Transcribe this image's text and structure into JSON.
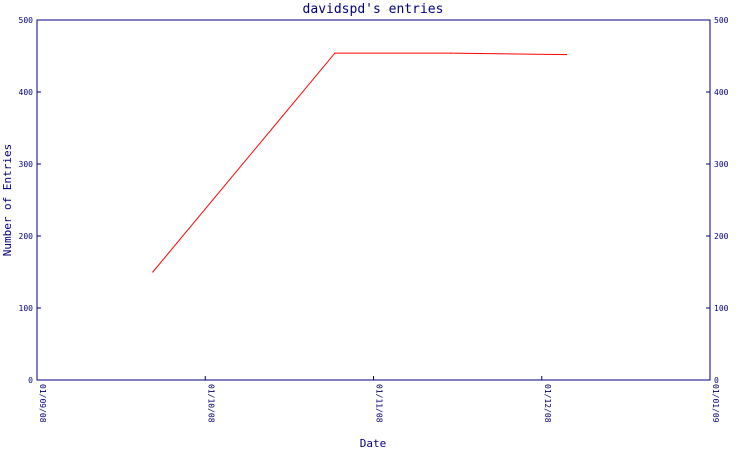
{
  "chart_data": {
    "type": "line",
    "title": "davidspd's entries",
    "xlabel": "Date",
    "ylabel": "Number of Entries",
    "x_ticks": [
      "01/09/08",
      "01/10/08",
      "01/11/08",
      "01/12/08",
      "01/01/09"
    ],
    "y_ticks": [
      0,
      100,
      200,
      300,
      400,
      500
    ],
    "ylim": [
      0,
      500
    ],
    "xlim": [
      "2008-09-01",
      "2009-01-01"
    ],
    "grid": false,
    "series": [
      {
        "color": "#ff0000",
        "points": [
          {
            "x": "2008-09-22",
            "y": 150
          },
          {
            "x": "2008-10-25",
            "y": 454
          },
          {
            "x": "2008-11-15",
            "y": 454
          },
          {
            "x": "2008-12-06",
            "y": 452
          }
        ]
      }
    ],
    "colors": {
      "axis": "#000080",
      "line": "#ff0000",
      "background": "#ffffff"
    }
  }
}
